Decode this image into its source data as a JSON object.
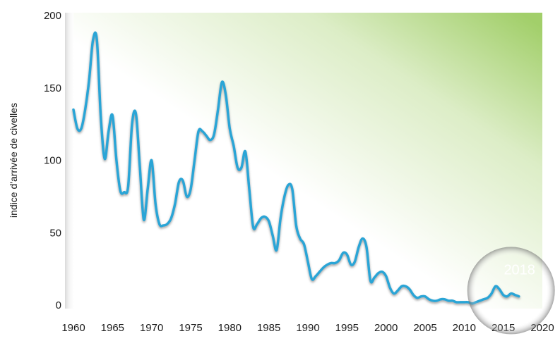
{
  "chart_data": {
    "type": "line",
    "title": "",
    "xlabel": "",
    "ylabel": "indice d'arrivée de civelles",
    "xlim": [
      1960,
      2020
    ],
    "ylim": [
      0,
      200
    ],
    "x_ticks": [
      1960,
      1965,
      1970,
      1975,
      1980,
      1985,
      1990,
      1995,
      2000,
      2005,
      2010,
      2015,
      2020
    ],
    "x_tick_labels": [
      "1960",
      "1965",
      "1970",
      "1975",
      "1980",
      "1985",
      "1990",
      "1995",
      "2000",
      "2005",
      "2010",
      "2015",
      "2020"
    ],
    "y_ticks": [
      0,
      50,
      100,
      150,
      200
    ],
    "y_tick_labels": [
      "0",
      "50",
      "100",
      "150",
      "200"
    ],
    "grid": false,
    "legend": "none",
    "colors": {
      "line": "#2aa5d6",
      "line_shadow": "#8a8a8a",
      "background_gradient_start": "#ffffff",
      "background_gradient_end": "#a2cf6a"
    },
    "annotation": {
      "text": "2018",
      "x": 2016
    },
    "series": [
      {
        "x": [
          1960,
          1960.5,
          1961,
          1961.5,
          1962,
          1962.5,
          1963,
          1963.5,
          1964,
          1964.5,
          1965,
          1965.5,
          1966,
          1966.5,
          1967,
          1967.5,
          1968,
          1968.5,
          1969,
          1969.5,
          1970,
          1970.5,
          1971,
          1971.5,
          1972,
          1972.5,
          1973,
          1973.5,
          1974,
          1974.5,
          1975,
          1975.5,
          1976,
          1976.5,
          1977,
          1977.5,
          1978,
          1978.5,
          1979,
          1979.5,
          1980,
          1980.5,
          1981,
          1981.5,
          1982,
          1982.5,
          1983,
          1983.5,
          1984,
          1984.5,
          1985,
          1985.5,
          1986,
          1986.5,
          1987,
          1987.5,
          1988,
          1988.5,
          1989,
          1989.5,
          1990,
          1990.5,
          1991,
          1991.5,
          1992,
          1992.5,
          1993,
          1993.5,
          1994,
          1994.5,
          1995,
          1995.5,
          1996,
          1996.5,
          1997,
          1997.5,
          1998,
          1998.5,
          1999,
          1999.5,
          2000,
          2000.5,
          2001,
          2001.5,
          2002,
          2002.5,
          2003,
          2003.5,
          2004,
          2004.5,
          2005,
          2005.5,
          2006,
          2006.5,
          2007,
          2007.5,
          2008,
          2008.5,
          2009,
          2009.5,
          2010,
          2010.5,
          2011,
          2011.5,
          2012,
          2012.5,
          2013,
          2013.5,
          2014,
          2014.5,
          2015,
          2015.5,
          2016,
          2016.5,
          2017
        ],
        "values": [
          135,
          122,
          122,
          135,
          155,
          183,
          183,
          130,
          101,
          120,
          131,
          100,
          79,
          78,
          82,
          125,
          132,
          95,
          59,
          80,
          100,
          70,
          56,
          55,
          56,
          60,
          70,
          85,
          86,
          75,
          80,
          100,
          120,
          120,
          117,
          114,
          118,
          135,
          154,
          145,
          122,
          110,
          95,
          95,
          106,
          80,
          54,
          56,
          60,
          61,
          58,
          48,
          38,
          60,
          75,
          83,
          80,
          55,
          46,
          42,
          30,
          18,
          20,
          23,
          26,
          28,
          29,
          29,
          31,
          36,
          35,
          28,
          30,
          40,
          46,
          40,
          17,
          19,
          22,
          23,
          20,
          12,
          8,
          10,
          13,
          13,
          11,
          7,
          5,
          6,
          6,
          4,
          3,
          3,
          4,
          4,
          3,
          3,
          2,
          2,
          2,
          2,
          1,
          2,
          3,
          4,
          5,
          8,
          13,
          11,
          7,
          6,
          8,
          7,
          6
        ]
      }
    ]
  }
}
